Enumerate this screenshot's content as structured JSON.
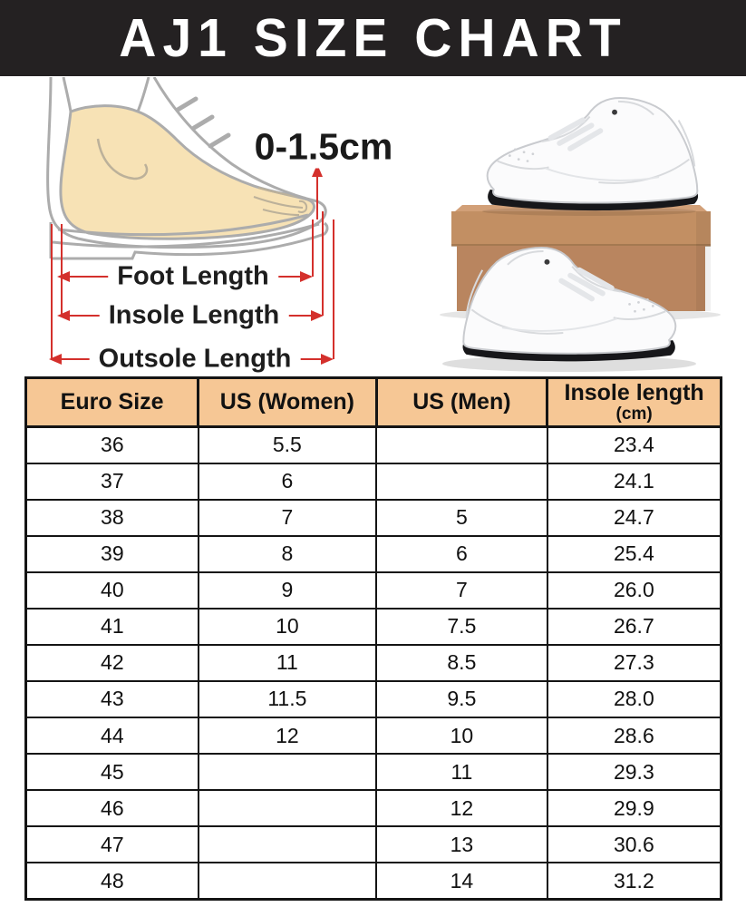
{
  "header": {
    "title": "AJ1 SIZE CHART"
  },
  "diagram": {
    "gap_label": "0-1.5cm",
    "foot_length_label": "Foot Length",
    "insole_length_label": "Insole Length",
    "outsole_length_label": "Outsole Length",
    "colors": {
      "arrow_red": "#d4302c",
      "foot_skin": "#f7e2b5",
      "outline_gray": "#acacac"
    }
  },
  "photo": {
    "subject": "white-high-top-sneakers-on-cardboard-box",
    "colors": {
      "shoe_white": "#fbfbfc",
      "sole_black": "#17171a",
      "box_tan": "#b9855f"
    }
  },
  "table": {
    "header_bg": "#f6c795",
    "columns": [
      {
        "label": "Euro Size",
        "sub": ""
      },
      {
        "label": "US (Women)",
        "sub": ""
      },
      {
        "label": "US (Men)",
        "sub": ""
      },
      {
        "label": "Insole length",
        "sub": "(cm)"
      }
    ]
  },
  "chart_data": {
    "type": "table",
    "title": "AJ1 SIZE CHART",
    "columns": [
      "Euro Size",
      "US (Women)",
      "US (Men)",
      "Insole length (cm)"
    ],
    "rows": [
      [
        "36",
        "5.5",
        "",
        "23.4"
      ],
      [
        "37",
        "6",
        "",
        "24.1"
      ],
      [
        "38",
        "7",
        "5",
        "24.7"
      ],
      [
        "39",
        "8",
        "6",
        "25.4"
      ],
      [
        "40",
        "9",
        "7",
        "26.0"
      ],
      [
        "41",
        "10",
        "7.5",
        "26.7"
      ],
      [
        "42",
        "11",
        "8.5",
        "27.3"
      ],
      [
        "43",
        "11.5",
        "9.5",
        "28.0"
      ],
      [
        "44",
        "12",
        "10",
        "28.6"
      ],
      [
        "45",
        "",
        "11",
        "29.3"
      ],
      [
        "46",
        "",
        "12",
        "29.9"
      ],
      [
        "47",
        "",
        "13",
        "30.6"
      ],
      [
        "48",
        "",
        "14",
        "31.2"
      ]
    ]
  }
}
